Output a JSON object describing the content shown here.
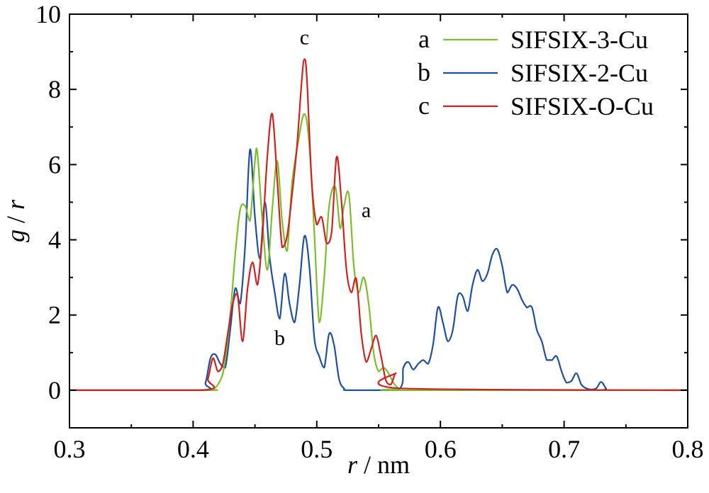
{
  "chart_data": {
    "type": "line",
    "xlabel_var": "r",
    "xlabel_unit": " / nm",
    "ylabel_var_g": "g",
    "ylabel_sep": " / ",
    "ylabel_var_r": "r",
    "xlim": [
      0.3,
      0.8
    ],
    "ylim": [
      -1,
      10
    ],
    "xticks": [
      0.3,
      0.4,
      0.5,
      0.6,
      0.7,
      0.8
    ],
    "xtick_labels": [
      "0.3",
      "0.4",
      "0.5",
      "0.6",
      "0.7",
      "0.8"
    ],
    "yticks": [
      0,
      2,
      4,
      6,
      8,
      10
    ],
    "ytick_labels": [
      "0",
      "2",
      "4",
      "6",
      "8",
      "10"
    ],
    "grid": false,
    "legend_position": "top-right",
    "series": [
      {
        "name": "SIFSIX-3-Cu",
        "letter": "a",
        "color": "#7cbf2a",
        "label_point": [
          0.54,
          4.6
        ],
        "x": [
          0.3,
          0.41,
          0.415,
          0.42,
          0.425,
          0.43,
          0.434,
          0.438,
          0.442,
          0.446,
          0.45,
          0.452,
          0.456,
          0.46,
          0.464,
          0.468,
          0.472,
          0.476,
          0.48,
          0.485,
          0.49,
          0.494,
          0.498,
          0.502,
          0.506,
          0.51,
          0.515,
          0.519,
          0.522,
          0.526,
          0.53,
          0.534,
          0.538,
          0.542,
          0.546,
          0.55,
          0.554,
          0.558,
          0.562,
          0.566,
          0.57,
          0.8
        ],
        "values": [
          0,
          0,
          0.02,
          0.15,
          0.6,
          2.0,
          3.6,
          4.8,
          4.9,
          4.5,
          6.1,
          6.3,
          4.5,
          3.2,
          4.8,
          6.1,
          4.5,
          3.7,
          5.5,
          6.6,
          7.35,
          6.5,
          4.2,
          1.8,
          3.0,
          4.9,
          5.4,
          4.3,
          4.9,
          5.2,
          3.3,
          2.6,
          3.0,
          2.3,
          1.0,
          0.5,
          0.6,
          0.45,
          0.2,
          0.05,
          0,
          0
        ]
      },
      {
        "name": "SIFSIX-2-Cu",
        "letter": "b",
        "color": "#1f4fa0",
        "label_point": [
          0.47,
          1.2
        ],
        "x": [
          0.3,
          0.405,
          0.41,
          0.414,
          0.418,
          0.422,
          0.426,
          0.43,
          0.434,
          0.438,
          0.442,
          0.446,
          0.45,
          0.454,
          0.458,
          0.462,
          0.466,
          0.47,
          0.474,
          0.478,
          0.482,
          0.486,
          0.49,
          0.494,
          0.498,
          0.502,
          0.506,
          0.51,
          0.514,
          0.518,
          0.522,
          0.526,
          0.565,
          0.57,
          0.574,
          0.578,
          0.582,
          0.586,
          0.59,
          0.594,
          0.598,
          0.602,
          0.606,
          0.61,
          0.614,
          0.618,
          0.622,
          0.626,
          0.63,
          0.634,
          0.638,
          0.642,
          0.646,
          0.65,
          0.654,
          0.658,
          0.662,
          0.666,
          0.67,
          0.674,
          0.678,
          0.682,
          0.686,
          0.69,
          0.694,
          0.698,
          0.702,
          0.706,
          0.71,
          0.714,
          0.718,
          0.722,
          0.726,
          0.73,
          0.734,
          0.738,
          0.8
        ],
        "values": [
          0,
          0,
          0.2,
          0.85,
          0.95,
          0.7,
          0.6,
          1.6,
          2.7,
          2.3,
          3.8,
          6.4,
          4.6,
          3.5,
          5.0,
          3.5,
          2.6,
          1.9,
          3.1,
          2.3,
          1.8,
          2.8,
          4.1,
          3.3,
          1.4,
          0.9,
          0.6,
          1.5,
          1.2,
          0.3,
          0.05,
          0,
          0,
          0.6,
          0.75,
          0.55,
          0.7,
          0.8,
          0.7,
          1.2,
          2.2,
          1.8,
          1.3,
          1.6,
          2.5,
          2.5,
          2.1,
          2.8,
          3.2,
          2.9,
          3.1,
          3.6,
          3.75,
          3.3,
          2.6,
          2.8,
          2.7,
          2.4,
          2.2,
          2.2,
          1.6,
          1.3,
          0.8,
          0.8,
          0.9,
          0.5,
          0.2,
          0.25,
          0.45,
          0.15,
          0.05,
          0.02,
          0.05,
          0.22,
          0.05,
          0,
          0
        ]
      },
      {
        "name": "SIFSIX-O-Cu",
        "letter": "c",
        "color": "#d42020",
        "label_point": [
          0.49,
          9.2
        ],
        "x": [
          0.3,
          0.408,
          0.412,
          0.416,
          0.42,
          0.424,
          0.428,
          0.432,
          0.436,
          0.44,
          0.444,
          0.448,
          0.452,
          0.456,
          0.46,
          0.464,
          0.468,
          0.472,
          0.476,
          0.48,
          0.484,
          0.488,
          0.49,
          0.492,
          0.496,
          0.5,
          0.504,
          0.508,
          0.512,
          0.516,
          0.52,
          0.524,
          0.528,
          0.532,
          0.536,
          0.54,
          0.544,
          0.548,
          0.552,
          0.556,
          0.56,
          0.564,
          0.568,
          0.8
        ],
        "values": [
          0,
          0,
          0.3,
          0.85,
          0.5,
          0.7,
          1.5,
          2.3,
          2.5,
          1.3,
          2.7,
          3.4,
          2.8,
          4.1,
          6.2,
          7.35,
          5.6,
          3.8,
          4.1,
          5.2,
          6.5,
          8.3,
          8.8,
          8.3,
          5.5,
          4.4,
          4.6,
          3.9,
          4.2,
          6.2,
          5.0,
          3.2,
          2.6,
          2.95,
          1.5,
          0.75,
          1.1,
          1.45,
          0.9,
          0.25,
          0.15,
          0.45,
          0.05,
          0
        ]
      }
    ]
  }
}
